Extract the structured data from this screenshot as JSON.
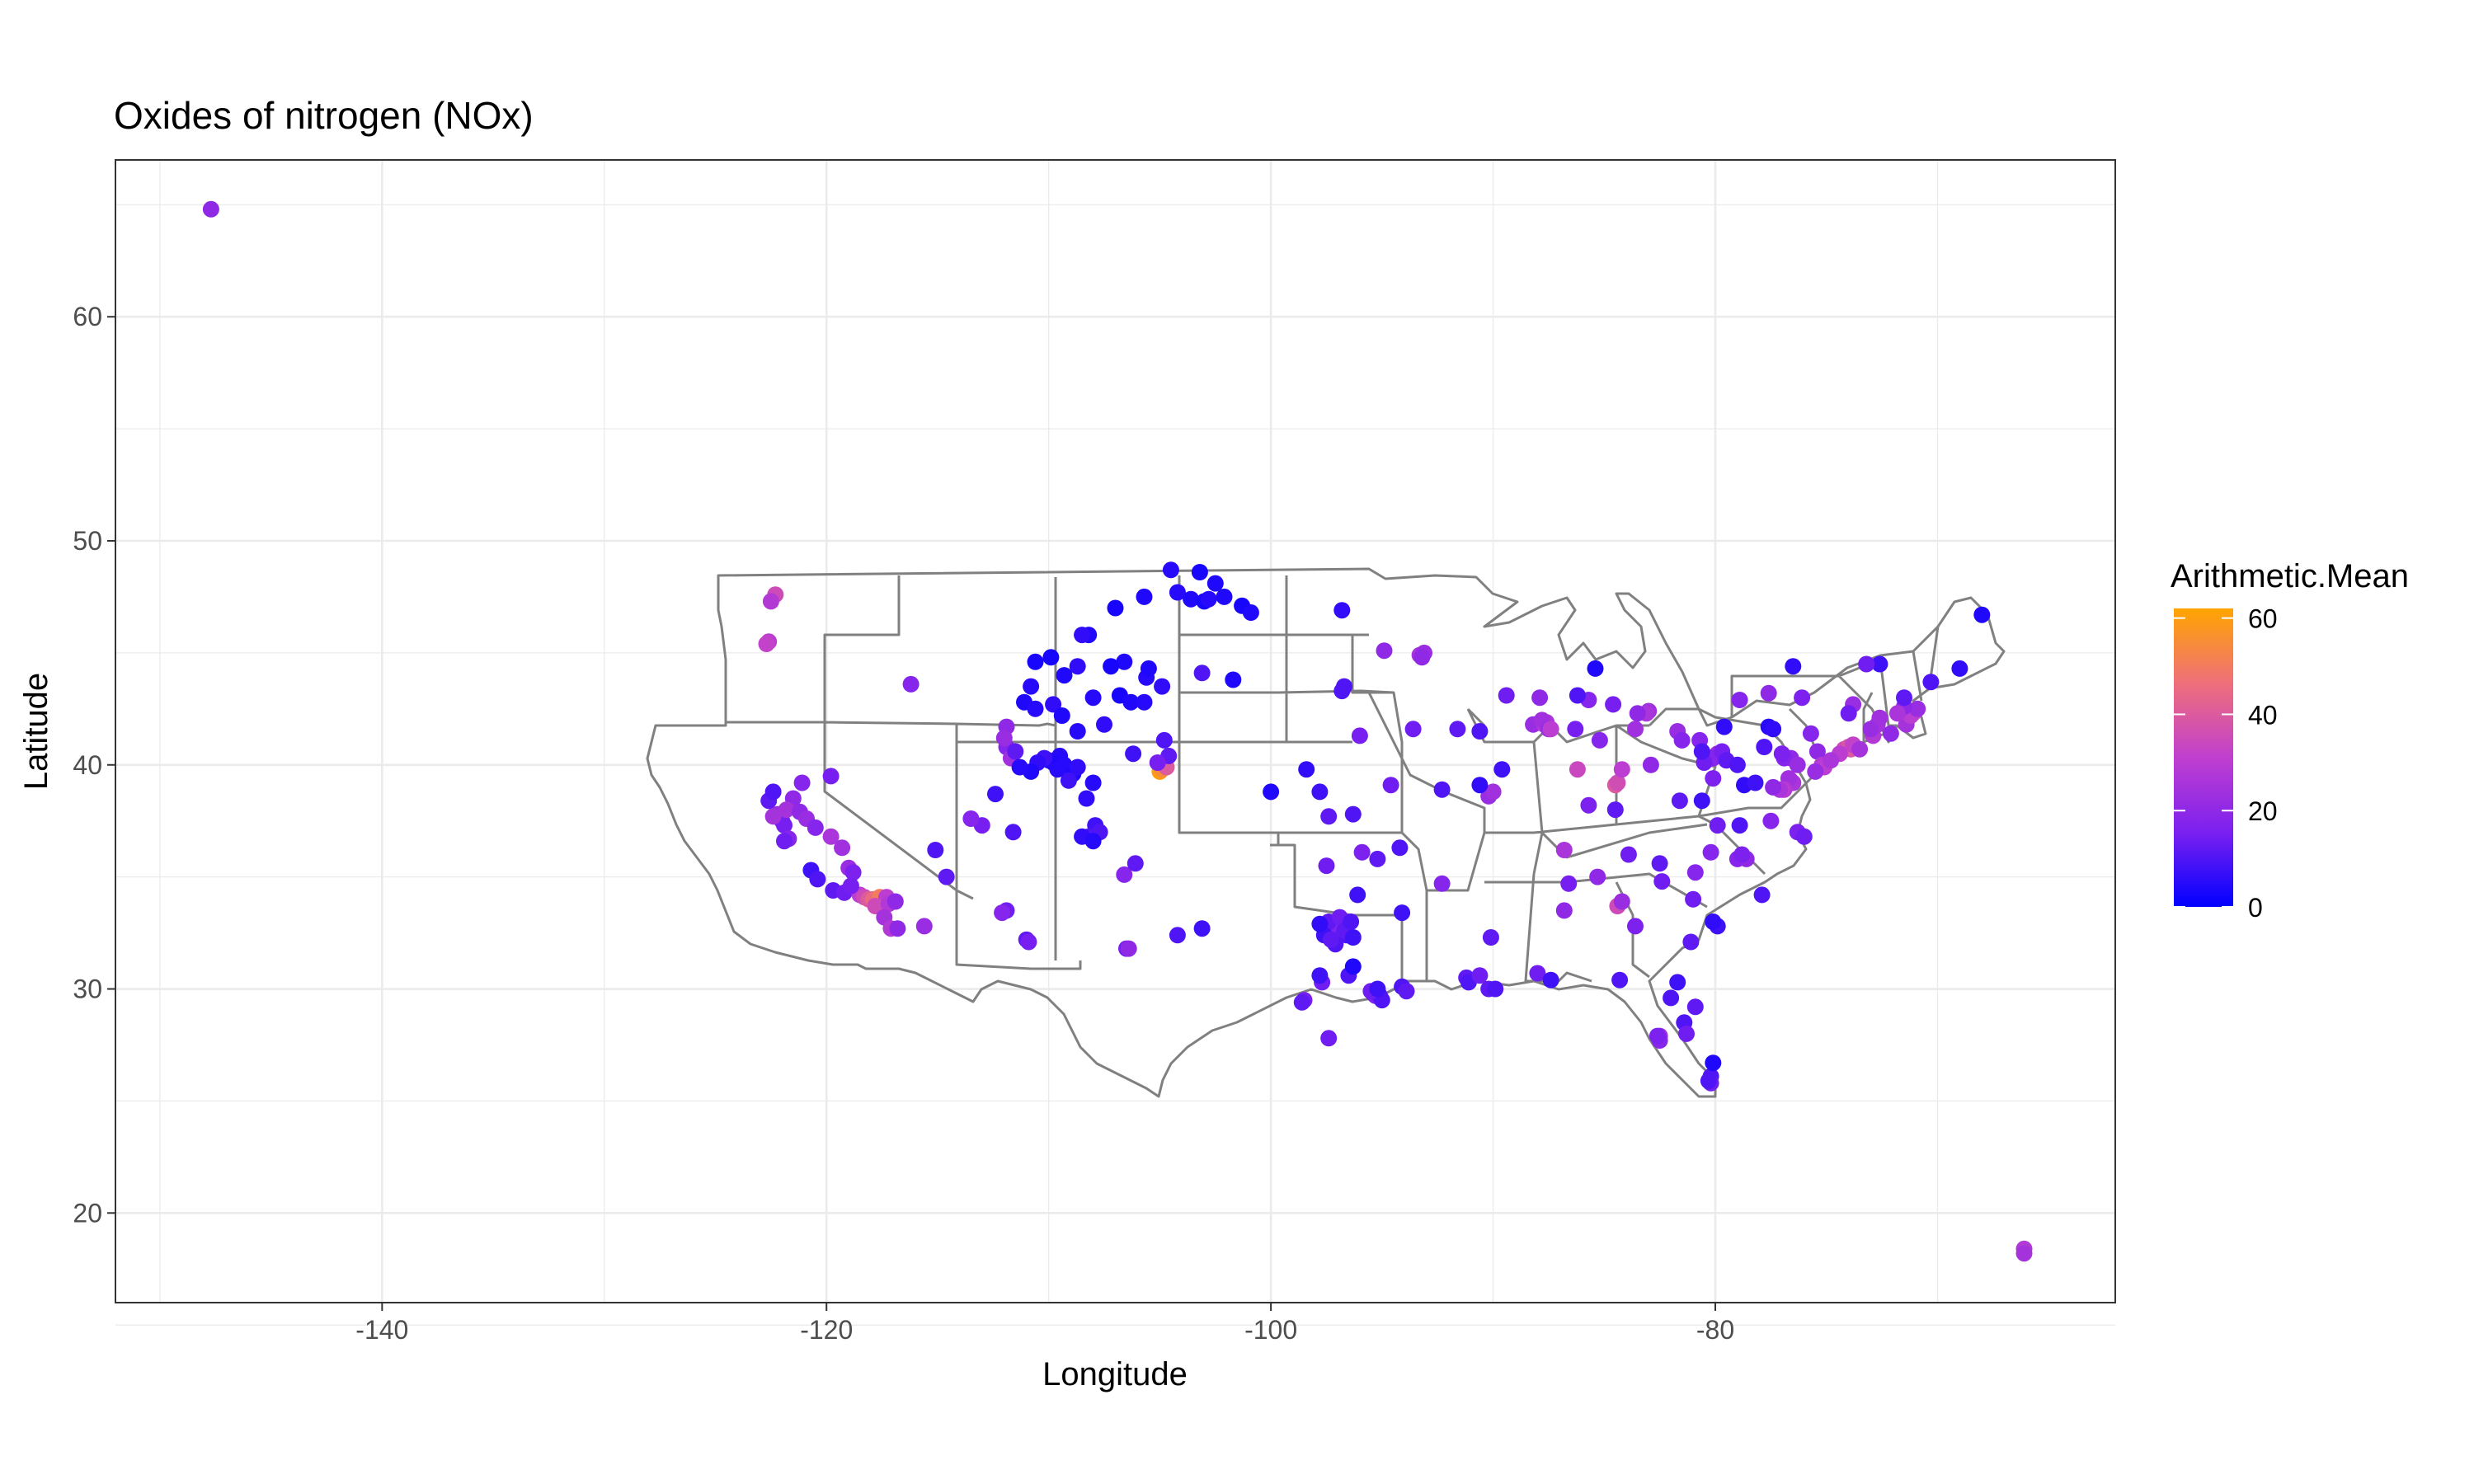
{
  "chart_data": {
    "type": "scatter",
    "title": "Oxides of nitrogen (NOx)",
    "xlabel": "Longitude",
    "ylabel": "Latitude",
    "xlim": [
      -152,
      -62
    ],
    "ylim": [
      16,
      67
    ],
    "x_ticks": [
      -140,
      -120,
      -100,
      -80
    ],
    "y_ticks": [
      20,
      30,
      40,
      50,
      60
    ],
    "x_tick_labels": [
      "-140",
      "-120",
      "-100",
      "-80"
    ],
    "y_tick_labels": [
      "20",
      "30",
      "40",
      "50",
      "60"
    ],
    "grid": true,
    "background": "#ffffff",
    "grid_color": "#ebebeb",
    "map_outline_color": "#808080",
    "legend": {
      "title": "Arithmetic.Mean",
      "placement": "right",
      "min": 0,
      "max": 62,
      "ticks": [
        0,
        20,
        40,
        60
      ],
      "tick_labels": [
        "0",
        "20",
        "40",
        "60"
      ],
      "colors": [
        "#0000ff",
        "#7b20f0",
        "#c03fcf",
        "#ef6f7a",
        "#ffa500"
      ]
    },
    "points": [
      [
        -147.7,
        64.8,
        20
      ],
      [
        -66.1,
        18.4,
        28
      ],
      [
        -66.1,
        18.2,
        25
      ],
      [
        -122.3,
        47.6,
        35
      ],
      [
        -122.5,
        47.3,
        28
      ],
      [
        -122.6,
        45.5,
        30
      ],
      [
        -122.7,
        45.4,
        32
      ],
      [
        -116.2,
        43.6,
        18
      ],
      [
        -119.8,
        39.5,
        15
      ],
      [
        -122.2,
        37.8,
        22
      ],
      [
        -122.0,
        37.5,
        18
      ],
      [
        -121.9,
        37.3,
        15
      ],
      [
        -122.4,
        37.7,
        25
      ],
      [
        -121.5,
        38.5,
        20
      ],
      [
        -121.8,
        38.0,
        25
      ],
      [
        -122.6,
        38.4,
        12
      ],
      [
        -121.2,
        37.9,
        20
      ],
      [
        -120.9,
        37.6,
        22
      ],
      [
        -120.5,
        37.2,
        18
      ],
      [
        -119.8,
        36.8,
        26
      ],
      [
        -119.3,
        36.3,
        24
      ],
      [
        -119.0,
        35.4,
        22
      ],
      [
        -118.8,
        35.2,
        16
      ],
      [
        -120.7,
        35.3,
        8
      ],
      [
        -120.4,
        34.9,
        10
      ],
      [
        -119.7,
        34.4,
        12
      ],
      [
        -119.2,
        34.3,
        14
      ],
      [
        -118.5,
        34.2,
        30
      ],
      [
        -118.3,
        34.1,
        35
      ],
      [
        -118.1,
        34.0,
        40
      ],
      [
        -117.9,
        34.0,
        45
      ],
      [
        -117.6,
        34.1,
        50
      ],
      [
        -117.3,
        34.1,
        30
      ],
      [
        -117.8,
        33.7,
        35
      ],
      [
        -117.2,
        33.8,
        28
      ],
      [
        -116.9,
        33.9,
        20
      ],
      [
        -117.4,
        33.2,
        25
      ],
      [
        -117.1,
        32.7,
        28
      ],
      [
        -116.8,
        32.7,
        20
      ],
      [
        -115.6,
        32.8,
        22
      ],
      [
        -121.7,
        36.7,
        18
      ],
      [
        -121.9,
        36.6,
        14
      ],
      [
        -118.9,
        34.6,
        15
      ],
      [
        -121.1,
        39.2,
        18
      ],
      [
        -122.4,
        38.8,
        10
      ],
      [
        -115.1,
        36.2,
        10
      ],
      [
        -114.6,
        35.0,
        12
      ],
      [
        -111.9,
        40.8,
        18
      ],
      [
        -111.7,
        40.3,
        24
      ],
      [
        -111.9,
        41.7,
        20
      ],
      [
        -112.0,
        41.2,
        22
      ],
      [
        -111.5,
        40.6,
        12
      ],
      [
        -112.4,
        38.7,
        8
      ],
      [
        -111.6,
        37.0,
        10
      ],
      [
        -113.0,
        37.3,
        15
      ],
      [
        -111.9,
        33.5,
        14
      ],
      [
        -111.0,
        32.2,
        12
      ],
      [
        -110.9,
        32.1,
        15
      ],
      [
        -112.1,
        33.4,
        18
      ],
      [
        -113.5,
        37.6,
        18
      ],
      [
        -109.5,
        40.4,
        5
      ],
      [
        -110.0,
        40.2,
        6
      ],
      [
        -109.8,
        40.1,
        4
      ],
      [
        -110.2,
        40.3,
        8
      ],
      [
        -109.3,
        40.0,
        5
      ],
      [
        -110.5,
        40.1,
        6
      ],
      [
        -108.9,
        39.6,
        4
      ],
      [
        -108.7,
        39.9,
        6
      ],
      [
        -110.8,
        39.7,
        4
      ],
      [
        -111.3,
        39.9,
        5
      ],
      [
        -109.1,
        39.3,
        8
      ],
      [
        -108.0,
        39.2,
        5
      ],
      [
        -109.6,
        39.8,
        5
      ],
      [
        -108.3,
        38.5,
        6
      ],
      [
        -107.9,
        37.3,
        8
      ],
      [
        -107.7,
        37.0,
        10
      ],
      [
        -108.2,
        36.8,
        10
      ],
      [
        -108.5,
        36.8,
        6
      ],
      [
        -108.0,
        36.6,
        5
      ],
      [
        -106.6,
        35.1,
        18
      ],
      [
        -106.1,
        35.6,
        12
      ],
      [
        -106.5,
        31.8,
        15
      ],
      [
        -106.4,
        31.8,
        20
      ],
      [
        -104.2,
        32.4,
        10
      ],
      [
        -103.1,
        32.7,
        8
      ],
      [
        -105.0,
        39.7,
        60
      ],
      [
        -104.9,
        39.8,
        55
      ],
      [
        -104.7,
        39.9,
        40
      ],
      [
        -104.8,
        41.1,
        10
      ],
      [
        -104.6,
        40.4,
        12
      ],
      [
        -105.1,
        40.1,
        15
      ],
      [
        -106.2,
        40.5,
        8
      ],
      [
        -110.6,
        44.6,
        3
      ],
      [
        -110.8,
        43.5,
        5
      ],
      [
        -111.1,
        42.8,
        4
      ],
      [
        -110.6,
        42.5,
        5
      ],
      [
        -109.8,
        42.7,
        6
      ],
      [
        -109.4,
        42.2,
        4
      ],
      [
        -108.0,
        43.0,
        5
      ],
      [
        -106.8,
        43.1,
        3
      ],
      [
        -107.5,
        41.8,
        6
      ],
      [
        -108.7,
        41.5,
        5
      ],
      [
        -106.3,
        42.8,
        4
      ],
      [
        -105.6,
        43.9,
        5
      ],
      [
        -105.5,
        44.3,
        4
      ],
      [
        -104.9,
        43.5,
        6
      ],
      [
        -105.7,
        42.8,
        5
      ],
      [
        -106.6,
        44.6,
        4
      ],
      [
        -107.2,
        44.4,
        3
      ],
      [
        -108.7,
        44.4,
        6
      ],
      [
        -109.3,
        44.0,
        4
      ],
      [
        -109.9,
        44.8,
        3
      ],
      [
        -108.2,
        45.8,
        4
      ],
      [
        -108.5,
        45.8,
        6
      ],
      [
        -107.0,
        47.0,
        3
      ],
      [
        -105.7,
        47.5,
        4
      ],
      [
        -104.2,
        47.7,
        5
      ],
      [
        -103.6,
        47.4,
        4
      ],
      [
        -103.0,
        47.3,
        3
      ],
      [
        -102.8,
        47.4,
        5
      ],
      [
        -102.1,
        47.5,
        4
      ],
      [
        -101.3,
        47.1,
        3
      ],
      [
        -100.9,
        46.8,
        4
      ],
      [
        -103.2,
        48.6,
        3
      ],
      [
        -102.5,
        48.1,
        4
      ],
      [
        -104.5,
        48.7,
        5
      ],
      [
        -103.1,
        44.1,
        10
      ],
      [
        -101.7,
        43.8,
        4
      ],
      [
        -96.8,
        46.9,
        6
      ],
      [
        -96.7,
        43.5,
        10
      ],
      [
        -96.8,
        43.3,
        10
      ],
      [
        -94.9,
        45.1,
        20
      ],
      [
        -93.3,
        44.9,
        25
      ],
      [
        -93.1,
        45.0,
        22
      ],
      [
        -93.2,
        44.8,
        20
      ],
      [
        -96.0,
        41.3,
        15
      ],
      [
        -94.6,
        39.1,
        14
      ],
      [
        -97.4,
        37.7,
        12
      ],
      [
        -96.3,
        37.8,
        10
      ],
      [
        -97.8,
        38.8,
        8
      ],
      [
        -98.4,
        39.8,
        6
      ],
      [
        -100.0,
        38.8,
        4
      ],
      [
        -91.6,
        41.6,
        12
      ],
      [
        -93.6,
        41.6,
        14
      ],
      [
        -90.6,
        41.5,
        10
      ],
      [
        -97.5,
        35.5,
        14
      ],
      [
        -95.9,
        36.1,
        16
      ],
      [
        -95.2,
        35.8,
        12
      ],
      [
        -96.1,
        34.2,
        8
      ],
      [
        -94.2,
        36.3,
        10
      ],
      [
        -92.3,
        34.7,
        18
      ],
      [
        -94.1,
        33.4,
        8
      ],
      [
        -97.0,
        32.9,
        15
      ],
      [
        -97.2,
        32.7,
        16
      ],
      [
        -96.8,
        32.8,
        18
      ],
      [
        -97.4,
        33.0,
        12
      ],
      [
        -96.9,
        33.2,
        14
      ],
      [
        -96.6,
        32.4,
        10
      ],
      [
        -97.6,
        32.4,
        8
      ],
      [
        -96.7,
        32.6,
        12
      ],
      [
        -97.1,
        32.0,
        10
      ],
      [
        -96.3,
        32.3,
        8
      ],
      [
        -97.3,
        32.2,
        12
      ],
      [
        -97.8,
        32.9,
        6
      ],
      [
        -96.4,
        33.0,
        10
      ],
      [
        -98.5,
        29.5,
        15
      ],
      [
        -98.6,
        29.4,
        12
      ],
      [
        -97.7,
        30.3,
        14
      ],
      [
        -96.5,
        30.6,
        10
      ],
      [
        -95.4,
        29.8,
        14
      ],
      [
        -95.3,
        29.7,
        16
      ],
      [
        -95.1,
        29.7,
        12
      ],
      [
        -95.0,
        29.5,
        10
      ],
      [
        -95.5,
        29.9,
        14
      ],
      [
        -95.2,
        30.0,
        8
      ],
      [
        -94.1,
        30.1,
        10
      ],
      [
        -93.9,
        29.9,
        12
      ],
      [
        -97.4,
        27.8,
        14
      ],
      [
        -97.8,
        30.6,
        8
      ],
      [
        -96.3,
        31.0,
        4
      ],
      [
        -91.2,
        30.5,
        12
      ],
      [
        -91.1,
        30.3,
        10
      ],
      [
        -90.6,
        30.6,
        14
      ],
      [
        -90.2,
        30.0,
        12
      ],
      [
        -89.9,
        30.0,
        10
      ],
      [
        -90.1,
        32.3,
        12
      ],
      [
        -88.0,
        30.7,
        14
      ],
      [
        -87.4,
        30.4,
        8
      ],
      [
        -86.8,
        33.5,
        20
      ],
      [
        -86.6,
        34.7,
        15
      ],
      [
        -84.4,
        33.7,
        35
      ],
      [
        -84.2,
        33.9,
        22
      ],
      [
        -83.6,
        32.8,
        16
      ],
      [
        -81.1,
        32.1,
        12
      ],
      [
        -81.0,
        34.0,
        14
      ],
      [
        -80.9,
        35.2,
        18
      ],
      [
        -82.4,
        34.8,
        14
      ],
      [
        -79.9,
        32.8,
        8
      ],
      [
        -80.1,
        33.0,
        6
      ],
      [
        -80.9,
        29.2,
        12
      ],
      [
        -81.4,
        28.5,
        10
      ],
      [
        -81.3,
        28.0,
        14
      ],
      [
        -82.5,
        27.9,
        22
      ],
      [
        -82.5,
        27.7,
        18
      ],
      [
        -82.6,
        27.9,
        16
      ],
      [
        -80.2,
        26.1,
        10
      ],
      [
        -80.1,
        26.7,
        4
      ],
      [
        -80.2,
        25.8,
        14
      ],
      [
        -80.3,
        25.9,
        10
      ],
      [
        -81.7,
        30.3,
        8
      ],
      [
        -82.0,
        29.6,
        10
      ],
      [
        -84.3,
        30.4,
        10
      ],
      [
        -90.2,
        38.6,
        22
      ],
      [
        -90.0,
        38.8,
        24
      ],
      [
        -92.3,
        38.9,
        10
      ],
      [
        -90.6,
        39.1,
        6
      ],
      [
        -89.6,
        39.8,
        8
      ],
      [
        -88.2,
        41.8,
        22
      ],
      [
        -87.7,
        41.8,
        28
      ],
      [
        -87.6,
        41.9,
        26
      ],
      [
        -87.8,
        42.0,
        24
      ],
      [
        -87.5,
        41.6,
        22
      ],
      [
        -87.9,
        43.0,
        20
      ],
      [
        -89.4,
        43.1,
        14
      ],
      [
        -87.4,
        41.6,
        30
      ],
      [
        -86.2,
        39.8,
        34
      ],
      [
        -85.2,
        41.1,
        18
      ],
      [
        -86.3,
        41.6,
        15
      ],
      [
        -85.7,
        42.9,
        18
      ],
      [
        -84.6,
        42.7,
        15
      ],
      [
        -83.0,
        42.4,
        24
      ],
      [
        -83.1,
        42.3,
        26
      ],
      [
        -83.5,
        42.3,
        20
      ],
      [
        -84.5,
        39.1,
        40
      ],
      [
        -84.4,
        39.2,
        36
      ],
      [
        -84.2,
        39.8,
        30
      ],
      [
        -84.5,
        38.0,
        12
      ],
      [
        -85.7,
        38.2,
        16
      ],
      [
        -86.8,
        36.2,
        26
      ],
      [
        -85.3,
        35.0,
        20
      ],
      [
        -83.9,
        36.0,
        14
      ],
      [
        -85.4,
        44.3,
        4
      ],
      [
        -86.2,
        43.1,
        10
      ],
      [
        -81.7,
        41.5,
        22
      ],
      [
        -81.5,
        41.1,
        18
      ],
      [
        -82.9,
        40.0,
        20
      ],
      [
        -83.6,
        41.6,
        24
      ],
      [
        -80.7,
        41.1,
        18
      ],
      [
        -80.0,
        40.4,
        20
      ],
      [
        -79.9,
        40.5,
        22
      ],
      [
        -80.1,
        40.3,
        18
      ],
      [
        -79.7,
        40.6,
        15
      ],
      [
        -80.5,
        40.1,
        14
      ],
      [
        -79.5,
        40.2,
        12
      ],
      [
        -79.0,
        40.0,
        10
      ],
      [
        -80.6,
        40.6,
        10
      ],
      [
        -79.6,
        41.7,
        6
      ],
      [
        -78.9,
        42.9,
        18
      ],
      [
        -77.6,
        43.2,
        20
      ],
      [
        -76.1,
        43.0,
        16
      ],
      [
        -73.8,
        42.7,
        22
      ],
      [
        -74.0,
        42.3,
        14
      ],
      [
        -76.5,
        44.4,
        6
      ],
      [
        -77.6,
        41.7,
        5
      ],
      [
        -77.4,
        41.6,
        6
      ],
      [
        -76.6,
        40.3,
        20
      ],
      [
        -76.9,
        40.3,
        18
      ],
      [
        -76.3,
        40.0,
        22
      ],
      [
        -77.0,
        40.5,
        16
      ],
      [
        -75.4,
        40.6,
        20
      ],
      [
        -75.7,
        41.4,
        18
      ],
      [
        -77.8,
        40.8,
        10
      ],
      [
        -75.2,
        40.0,
        28
      ],
      [
        -75.1,
        39.9,
        30
      ],
      [
        -74.2,
        40.7,
        35
      ],
      [
        -74.0,
        40.8,
        38
      ],
      [
        -73.9,
        40.7,
        40
      ],
      [
        -73.8,
        40.9,
        32
      ],
      [
        -74.4,
        40.5,
        30
      ],
      [
        -74.8,
        40.2,
        26
      ],
      [
        -73.5,
        40.7,
        25
      ],
      [
        -72.9,
        41.3,
        28
      ],
      [
        -72.7,
        41.8,
        25
      ],
      [
        -73.0,
        41.6,
        22
      ],
      [
        -72.1,
        41.4,
        20
      ],
      [
        -71.4,
        41.8,
        25
      ],
      [
        -71.1,
        42.3,
        40
      ],
      [
        -71.0,
        42.4,
        35
      ],
      [
        -71.2,
        42.2,
        30
      ],
      [
        -70.9,
        42.5,
        22
      ],
      [
        -71.5,
        42.6,
        20
      ],
      [
        -72.6,
        42.1,
        24
      ],
      [
        -71.8,
        42.3,
        26
      ],
      [
        -71.5,
        43.0,
        12
      ],
      [
        -70.3,
        43.7,
        10
      ],
      [
        -69.0,
        44.3,
        6
      ],
      [
        -68.0,
        46.7,
        4
      ],
      [
        -72.6,
        44.5,
        8
      ],
      [
        -73.2,
        44.5,
        14
      ],
      [
        -76.6,
        39.3,
        30
      ],
      [
        -76.5,
        39.2,
        26
      ],
      [
        -76.7,
        39.4,
        24
      ],
      [
        -76.9,
        38.9,
        28
      ],
      [
        -77.0,
        38.9,
        30
      ],
      [
        -77.1,
        38.9,
        26
      ],
      [
        -77.4,
        39.0,
        20
      ],
      [
        -77.5,
        37.5,
        18
      ],
      [
        -76.3,
        37.0,
        16
      ],
      [
        -76.0,
        36.8,
        14
      ],
      [
        -78.9,
        37.3,
        10
      ],
      [
        -79.9,
        37.3,
        14
      ],
      [
        -80.6,
        38.4,
        8
      ],
      [
        -81.6,
        38.4,
        12
      ],
      [
        -80.1,
        39.4,
        16
      ],
      [
        -78.7,
        39.1,
        6
      ],
      [
        -79.0,
        35.8,
        18
      ],
      [
        -78.6,
        35.8,
        20
      ],
      [
        -78.8,
        36.0,
        16
      ],
      [
        -80.2,
        36.1,
        18
      ],
      [
        -82.5,
        35.6,
        12
      ],
      [
        -77.9,
        34.2,
        10
      ],
      [
        -78.2,
        39.2,
        8
      ],
      [
        -75.5,
        39.7,
        22
      ]
    ]
  }
}
